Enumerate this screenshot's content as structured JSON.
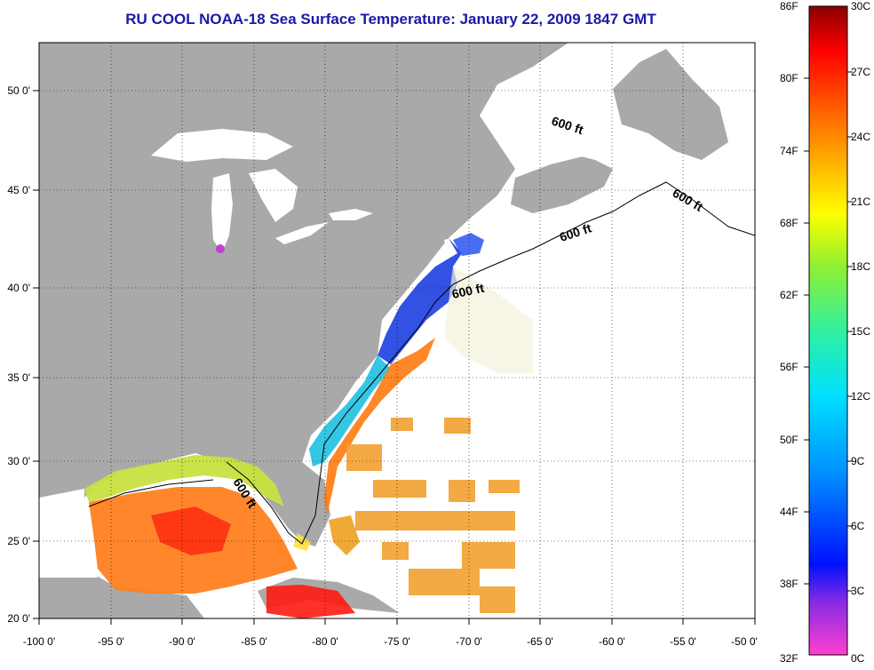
{
  "title": "RU COOL  NOAA-18  Sea Surface Temperature:  January 22, 2009 1847 GMT",
  "map": {
    "lon_ticks": [
      "-100 0'",
      "-95 0'",
      "-90 0'",
      "-85 0'",
      "-80 0'",
      "-75 0'",
      "-70 0'",
      "-65 0'",
      "-60 0'",
      "-55 0'",
      "-50 0'"
    ],
    "lat_ticks": [
      "50 0'",
      "45 0'",
      "40 0'",
      "35 0'",
      "30 0'",
      "25 0'",
      "20 0'"
    ],
    "isobath_label": "600 ft",
    "colors": {
      "land": "#a9a9a9",
      "water_no_data": "#ffffff",
      "grid": "#000000"
    }
  },
  "colorbar": {
    "fahrenheit": [
      "86F",
      "80F",
      "74F",
      "68F",
      "62F",
      "56F",
      "50F",
      "44F",
      "38F",
      "32F"
    ],
    "celsius": [
      "30C",
      "27C",
      "24C",
      "21C",
      "18C",
      "15C",
      "12C",
      "9C",
      "6C",
      "3C",
      "0C"
    ],
    "colors": [
      "#ff40d0",
      "#8a2be2",
      "#0010ff",
      "#0090ff",
      "#00e0ff",
      "#30f0a0",
      "#90f030",
      "#ffff00",
      "#ffb000",
      "#ff6000",
      "#ff0000",
      "#8b0000"
    ]
  }
}
